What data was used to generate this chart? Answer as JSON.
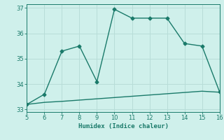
{
  "xlabel": "Humidex (Indice chaleur)",
  "xlim": [
    5,
    16
  ],
  "ylim": [
    33,
    37
  ],
  "yticks": [
    33,
    34,
    35,
    36,
    37
  ],
  "xticks": [
    5,
    6,
    7,
    8,
    9,
    10,
    11,
    12,
    13,
    14,
    15,
    16
  ],
  "bg_color": "#cff0eb",
  "grid_color": "#b8ddd8",
  "line_color": "#1a7a6a",
  "line1_x": [
    5,
    6,
    7,
    8,
    9,
    10,
    11,
    12,
    13,
    14,
    15,
    16
  ],
  "line1_y": [
    33.2,
    33.6,
    35.3,
    35.5,
    34.1,
    36.95,
    36.6,
    36.6,
    36.6,
    35.6,
    35.5,
    33.7
  ],
  "line2_x": [
    5,
    6,
    7,
    8,
    9,
    10,
    11,
    12,
    13,
    14,
    15,
    16
  ],
  "line2_y": [
    33.2,
    33.28,
    33.32,
    33.37,
    33.42,
    33.47,
    33.52,
    33.57,
    33.62,
    33.67,
    33.72,
    33.68
  ],
  "marker": "D",
  "markersize": 2.5,
  "linewidth": 1.0
}
